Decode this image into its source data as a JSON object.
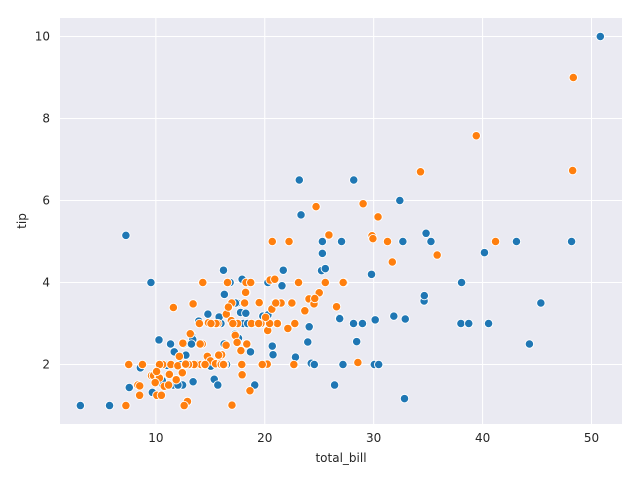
{
  "chart_data": {
    "type": "scatter",
    "title": "",
    "xlabel": "total_bill",
    "ylabel": "tip",
    "xlim": [
      1.2,
      52.8
    ],
    "ylim": [
      0.55,
      10.45
    ],
    "xticks": [
      10,
      20,
      30,
      40,
      50
    ],
    "yticks": [
      2,
      4,
      6,
      8,
      10
    ],
    "grid": true,
    "background": "#eaeaf2",
    "legend": "none",
    "series": [
      {
        "color": "#1f77b4",
        "points": [
          [
            3.07,
            1.0
          ],
          [
            5.75,
            1.0
          ],
          [
            7.25,
            5.15
          ],
          [
            7.56,
            1.44
          ],
          [
            9.55,
            4.0
          ],
          [
            8.58,
            1.92
          ],
          [
            10.07,
            1.83
          ],
          [
            10.34,
            2.0
          ],
          [
            10.65,
            1.5
          ],
          [
            11.02,
            1.98
          ],
          [
            11.59,
            1.5
          ],
          [
            11.69,
            2.31
          ],
          [
            12.26,
            2.0
          ],
          [
            12.46,
            1.5
          ],
          [
            12.03,
            1.5
          ],
          [
            12.66,
            2.5
          ],
          [
            12.54,
            2.5
          ],
          [
            12.74,
            2.01
          ],
          [
            12.43,
            1.8
          ],
          [
            12.9,
            1.1
          ],
          [
            12.6,
            1.0
          ],
          [
            13.0,
            2.0
          ],
          [
            13.28,
            2.72
          ],
          [
            13.39,
            2.61
          ],
          [
            13.42,
            1.58
          ],
          [
            13.51,
            2.0
          ],
          [
            13.81,
            2.0
          ],
          [
            13.42,
            3.48
          ],
          [
            14.31,
            4.0
          ],
          [
            14.52,
            2.0
          ],
          [
            14.78,
            3.23
          ],
          [
            15.04,
            1.96
          ],
          [
            15.36,
            1.64
          ],
          [
            15.53,
            3.0
          ],
          [
            15.69,
            1.5
          ],
          [
            15.77,
            2.23
          ],
          [
            15.98,
            3.0
          ],
          [
            16.0,
            2.0
          ],
          [
            16.29,
            3.71
          ],
          [
            16.31,
            2.0
          ],
          [
            16.4,
            2.5
          ],
          [
            16.49,
            2.0
          ],
          [
            16.66,
            3.4
          ],
          [
            16.82,
            4.0
          ],
          [
            16.21,
            4.3
          ],
          [
            16.58,
            4.0
          ],
          [
            17.07,
            3.0
          ],
          [
            17.26,
            2.74
          ],
          [
            17.47,
            3.5
          ],
          [
            17.51,
            3.0
          ],
          [
            17.78,
            3.27
          ],
          [
            17.59,
            2.64
          ],
          [
            18.04,
            3.0
          ],
          [
            18.15,
            3.5
          ],
          [
            18.26,
            3.25
          ],
          [
            18.29,
            3.76
          ],
          [
            18.35,
            2.5
          ],
          [
            18.43,
            3.0
          ],
          [
            18.71,
            4.0
          ],
          [
            19.08,
            1.5
          ],
          [
            19.44,
            3.0
          ],
          [
            19.49,
            3.51
          ],
          [
            19.77,
            2.0
          ],
          [
            19.82,
            3.18
          ],
          [
            20.08,
            3.15
          ],
          [
            20.23,
            2.01
          ],
          [
            20.29,
            3.21
          ],
          [
            20.45,
            3.0
          ],
          [
            20.65,
            3.35
          ],
          [
            20.69,
            2.45
          ],
          [
            20.9,
            3.5
          ],
          [
            20.29,
            4.0
          ],
          [
            21.01,
            3.5
          ],
          [
            21.58,
            3.92
          ],
          [
            21.7,
            4.3
          ],
          [
            22.23,
            5.0
          ],
          [
            22.42,
            3.48
          ],
          [
            22.49,
            3.5
          ],
          [
            22.76,
            3.0
          ],
          [
            22.75,
            2.0
          ],
          [
            23.1,
            4.0
          ],
          [
            23.17,
            6.5
          ],
          [
            23.33,
            5.65
          ],
          [
            23.68,
            3.31
          ],
          [
            24.06,
            3.6
          ],
          [
            24.27,
            2.03
          ],
          [
            24.55,
            2.0
          ],
          [
            24.71,
            5.85
          ],
          [
            25.0,
            3.75
          ],
          [
            25.21,
            4.29
          ],
          [
            25.29,
            4.71
          ],
          [
            25.56,
            4.34
          ],
          [
            25.89,
            5.16
          ],
          [
            26.41,
            1.5
          ],
          [
            26.86,
            3.14
          ],
          [
            27.05,
            5.0
          ],
          [
            27.18,
            2.0
          ],
          [
            27.28,
            4.0
          ],
          [
            28.15,
            3.0
          ],
          [
            28.17,
            6.5
          ],
          [
            28.44,
            2.56
          ],
          [
            28.97,
            3.0
          ],
          [
            29.8,
            4.2
          ],
          [
            30.06,
            2.0
          ],
          [
            30.14,
            3.09
          ],
          [
            30.46,
            2.0
          ],
          [
            31.85,
            3.18
          ],
          [
            32.4,
            6.0
          ],
          [
            32.68,
            5.0
          ],
          [
            32.83,
            1.17
          ],
          [
            32.9,
            3.11
          ],
          [
            34.63,
            3.55
          ],
          [
            34.81,
            5.2
          ],
          [
            34.65,
            3.68
          ],
          [
            35.26,
            5.0
          ],
          [
            38.07,
            4.0
          ],
          [
            38.01,
            3.0
          ],
          [
            38.73,
            3.0
          ],
          [
            40.17,
            4.73
          ],
          [
            40.55,
            3.0
          ],
          [
            43.11,
            5.0
          ],
          [
            44.3,
            2.5
          ],
          [
            45.35,
            3.5
          ],
          [
            48.17,
            5.0
          ],
          [
            50.81,
            10.0
          ],
          [
            25.29,
            5.0
          ],
          [
            11.35,
            2.5
          ],
          [
            21.5,
            3.5
          ],
          [
            17.92,
            4.08
          ],
          [
            14.07,
            2.5
          ],
          [
            12.76,
            2.23
          ],
          [
            26.88,
            3.12
          ],
          [
            19.65,
            3.0
          ],
          [
            15.06,
            3.0
          ],
          [
            16.93,
            3.07
          ],
          [
            13.27,
            2.5
          ],
          [
            20.92,
            4.08
          ],
          [
            18.69,
            2.31
          ],
          [
            10.29,
            2.6
          ],
          [
            9.68,
            1.32
          ],
          [
            13.94,
            3.06
          ],
          [
            16.45,
            2.47
          ],
          [
            15.48,
            2.02
          ],
          [
            12.16,
            2.2
          ],
          [
            17.46,
            2.54
          ],
          [
            20.76,
            2.24
          ],
          [
            15.81,
            3.16
          ],
          [
            13.13,
            2.0
          ],
          [
            11.87,
            1.63
          ],
          [
            23.95,
            2.55
          ],
          [
            19.44,
            3.0
          ],
          [
            22.82,
            2.18
          ],
          [
            24.08,
            2.92
          ],
          [
            16.27,
            2.5
          ],
          [
            17.31,
            3.5
          ],
          [
            20.27,
            2.83
          ],
          [
            12.69,
            2.0
          ],
          [
            15.95,
            2.0
          ],
          [
            10.59,
            1.61
          ],
          [
            21.16,
            3.0
          ]
        ]
      },
      {
        "color": "#ff7f0e",
        "points": [
          [
            7.25,
            1.0
          ],
          [
            7.51,
            2.0
          ],
          [
            8.35,
            1.5
          ],
          [
            8.52,
            1.48
          ],
          [
            8.77,
            2.0
          ],
          [
            9.6,
            1.73
          ],
          [
            9.78,
            1.73
          ],
          [
            10.09,
            1.25
          ],
          [
            10.27,
            1.71
          ],
          [
            10.33,
            1.67
          ],
          [
            10.51,
            1.25
          ],
          [
            10.63,
            2.0
          ],
          [
            10.77,
            1.47
          ],
          [
            11.38,
            2.0
          ],
          [
            11.61,
            3.39
          ],
          [
            11.87,
            1.63
          ],
          [
            12.02,
            1.97
          ],
          [
            12.16,
            2.2
          ],
          [
            12.43,
            1.8
          ],
          [
            12.48,
            2.52
          ],
          [
            12.69,
            2.0
          ],
          [
            13.03,
            2.0
          ],
          [
            13.16,
            2.75
          ],
          [
            13.37,
            2.0
          ],
          [
            13.81,
            2.0
          ],
          [
            14.0,
            3.0
          ],
          [
            14.15,
            2.0
          ],
          [
            14.48,
            2.0
          ],
          [
            14.73,
            2.2
          ],
          [
            14.83,
            3.02
          ],
          [
            15.01,
            2.09
          ],
          [
            15.38,
            3.0
          ],
          [
            15.48,
            2.02
          ],
          [
            15.69,
            3.0
          ],
          [
            16.04,
            2.24
          ],
          [
            16.45,
            2.47
          ],
          [
            16.47,
            3.23
          ],
          [
            16.58,
            4.0
          ],
          [
            16.97,
            3.5
          ],
          [
            17.29,
            2.71
          ],
          [
            17.46,
            2.54
          ],
          [
            17.81,
            2.34
          ],
          [
            18.24,
            3.76
          ],
          [
            18.28,
            4.0
          ],
          [
            18.64,
            1.36
          ],
          [
            19.81,
            2.0
          ],
          [
            20.27,
            2.83
          ],
          [
            20.49,
            4.06
          ],
          [
            20.69,
            5.0
          ],
          [
            20.92,
            4.08
          ],
          [
            21.16,
            3.0
          ],
          [
            21.5,
            3.5
          ],
          [
            22.12,
            2.88
          ],
          [
            22.67,
            2.0
          ],
          [
            23.1,
            4.0
          ],
          [
            24.06,
            3.6
          ],
          [
            24.52,
            3.48
          ],
          [
            25.0,
            3.75
          ],
          [
            25.56,
            4.0
          ],
          [
            26.59,
            3.41
          ],
          [
            27.2,
            4.0
          ],
          [
            28.55,
            2.05
          ],
          [
            29.03,
            5.92
          ],
          [
            29.85,
            5.14
          ],
          [
            30.4,
            5.6
          ],
          [
            31.27,
            5.0
          ],
          [
            31.71,
            4.5
          ],
          [
            34.3,
            6.7
          ],
          [
            35.83,
            4.67
          ],
          [
            39.42,
            7.58
          ],
          [
            41.19,
            5.0
          ],
          [
            48.27,
            6.73
          ],
          [
            48.33,
            9.0
          ],
          [
            29.93,
            5.07
          ],
          [
            24.59,
            3.61
          ],
          [
            18.78,
            3.0
          ],
          [
            16.31,
            2.0
          ],
          [
            14.26,
            2.5
          ],
          [
            12.9,
            1.1
          ],
          [
            11.24,
            1.76
          ],
          [
            10.34,
            2.0
          ],
          [
            9.94,
            1.56
          ],
          [
            8.51,
            1.25
          ],
          [
            13.42,
            3.48
          ],
          [
            15.98,
            2.03
          ],
          [
            17.89,
            2.0
          ],
          [
            19.49,
            3.51
          ],
          [
            22.76,
            3.0
          ],
          [
            16.99,
            1.01
          ],
          [
            20.65,
            3.35
          ],
          [
            17.92,
            1.75
          ],
          [
            15.77,
            2.23
          ],
          [
            13.51,
            2.0
          ],
          [
            18.71,
            4.0
          ],
          [
            16.93,
            3.07
          ],
          [
            14.07,
            2.5
          ],
          [
            20.23,
            2.01
          ],
          [
            22.49,
            3.5
          ],
          [
            19.77,
            2.0
          ],
          [
            24.71,
            5.85
          ],
          [
            23.68,
            3.31
          ],
          [
            18.15,
            3.5
          ],
          [
            13.0,
            2.0
          ],
          [
            16.0,
            2.0
          ],
          [
            12.6,
            1.0
          ],
          [
            17.51,
            3.0
          ],
          [
            15.53,
            3.0
          ],
          [
            19.65,
            3.0
          ],
          [
            21.01,
            3.5
          ],
          [
            16.66,
            3.4
          ],
          [
            11.17,
            1.5
          ],
          [
            10.07,
            1.83
          ],
          [
            14.31,
            4.0
          ],
          [
            18.35,
            2.5
          ],
          [
            20.45,
            3.0
          ],
          [
            22.23,
            5.0
          ],
          [
            12.74,
            2.01
          ],
          [
            15.06,
            3.0
          ],
          [
            17.07,
            3.0
          ],
          [
            20.08,
            3.15
          ],
          [
            25.89,
            5.16
          ],
          [
            16.21,
            2.0
          ],
          [
            14.52,
            2.0
          ],
          [
            19.44,
            3.0
          ]
        ]
      }
    ]
  }
}
